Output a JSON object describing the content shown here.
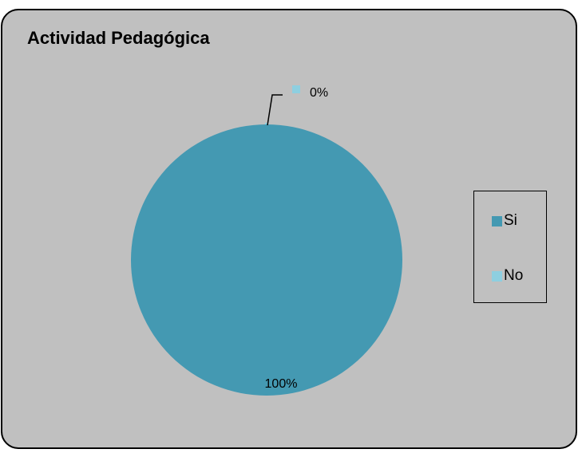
{
  "chart_data": {
    "type": "pie",
    "title": "Actividad Pedagógica",
    "categories": [
      "Si",
      "No"
    ],
    "values": [
      100,
      0
    ],
    "data_labels": [
      "100%",
      "0%"
    ],
    "colors": [
      "#4499b2",
      "#8ecfe0"
    ],
    "legend_position": "right"
  }
}
